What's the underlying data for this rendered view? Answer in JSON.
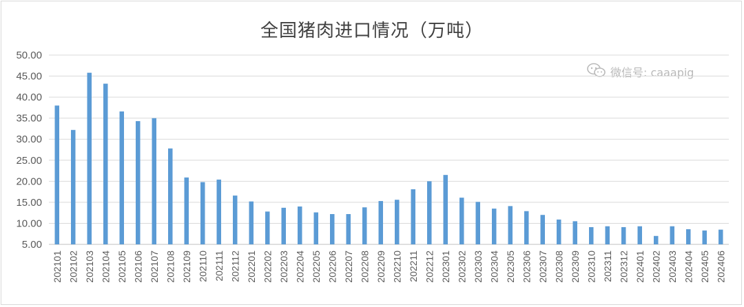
{
  "chart_data": {
    "type": "bar",
    "title": "全国猪肉进口情况（万吨）",
    "xlabel": "",
    "ylabel": "",
    "ylim": [
      5,
      50
    ],
    "yticks": [
      "50.00",
      "45.00",
      "40.00",
      "35.00",
      "30.00",
      "25.00",
      "20.00",
      "15.00",
      "10.00",
      "5.00"
    ],
    "grid": true,
    "bar_color": "#5b9bd5",
    "categories": [
      "202101",
      "202102",
      "202103",
      "202104",
      "202105",
      "202106",
      "202107",
      "202108",
      "202109",
      "202110",
      "202111",
      "202112",
      "202201",
      "202202",
      "202203",
      "202204",
      "202205",
      "202206",
      "202207",
      "202208",
      "202209",
      "202210",
      "202211",
      "202212",
      "202301",
      "202302",
      "202303",
      "202304",
      "202305",
      "202306",
      "202307",
      "202308",
      "202309",
      "202310",
      "202311",
      "202312",
      "202401",
      "202402",
      "202403",
      "202404",
      "202405",
      "202406"
    ],
    "values": [
      38.0,
      32.2,
      45.8,
      43.2,
      36.6,
      34.3,
      35.0,
      27.8,
      20.9,
      19.8,
      20.4,
      16.6,
      15.2,
      12.8,
      13.7,
      14.0,
      12.6,
      12.2,
      12.2,
      13.8,
      15.3,
      15.6,
      18.1,
      20.0,
      21.5,
      16.1,
      15.1,
      13.5,
      14.1,
      12.9,
      12.0,
      10.9,
      10.5,
      9.1,
      9.3,
      9.1,
      9.3,
      7.0,
      9.3,
      8.6,
      8.3,
      8.5
    ]
  },
  "watermark": {
    "text": "微信号: caaapig",
    "icon": "wechat-icon"
  }
}
